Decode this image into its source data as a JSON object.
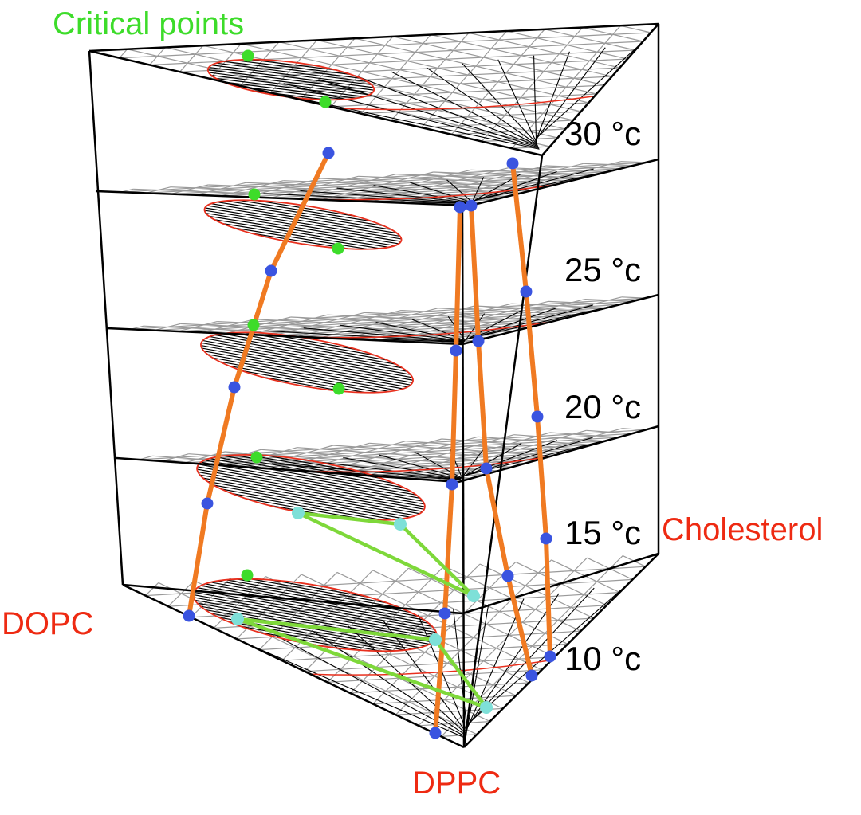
{
  "labels": {
    "critical_points": "Critical points",
    "dopc": "DOPC",
    "dppc": "DPPC",
    "cholesterol": "Cholesterol"
  },
  "temperatures": [
    "30 °c",
    "25 °c",
    "20 °c",
    "15 °c",
    "10 °c"
  ],
  "colors": {
    "critical_points": "#3ddc2a",
    "component_labels": "#ee2a12",
    "phase_boundary": "#e8301e",
    "tie_lines": "#000000",
    "grid": "#9a9a9a",
    "tie_line_ends": "#3a54e0",
    "three_phase_edges": "#f07a22",
    "three_phase_nodes": "#7ee0d8",
    "three_phase_lines": "#7ed83a"
  }
}
